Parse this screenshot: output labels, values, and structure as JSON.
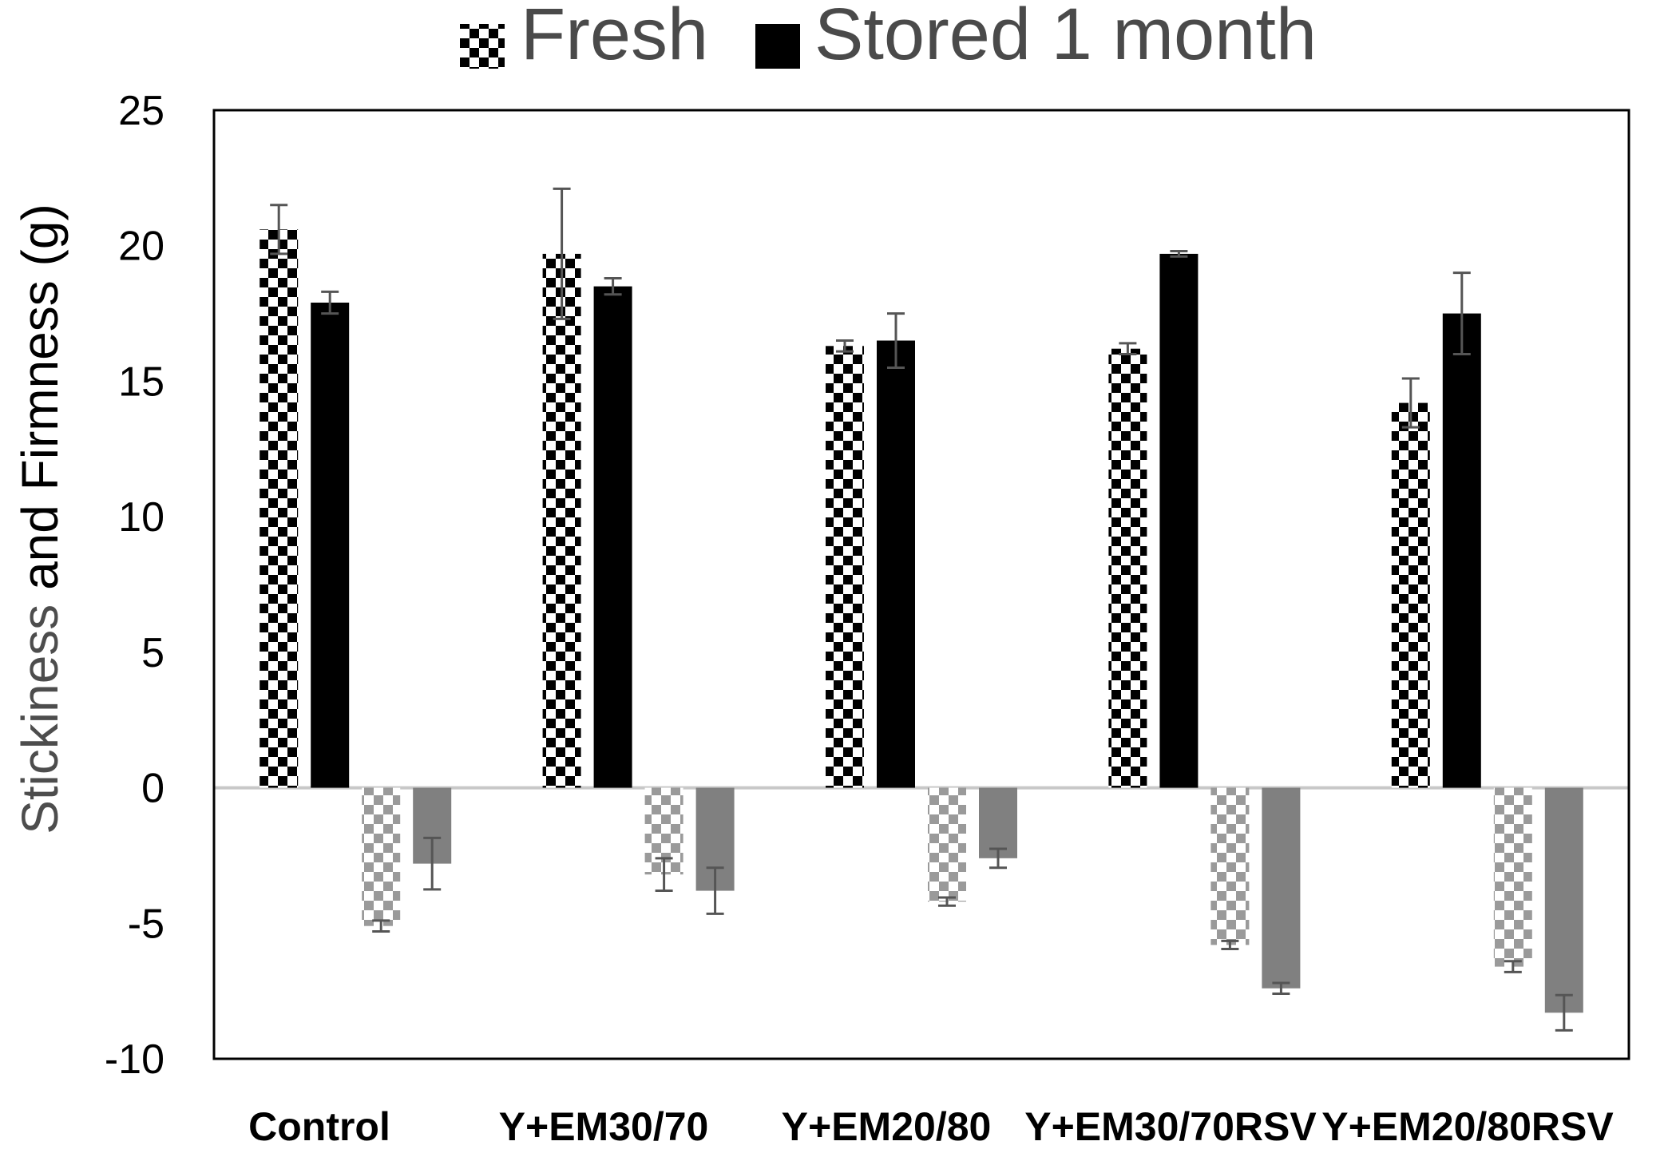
{
  "chart_data": {
    "type": "bar",
    "categories": [
      "Control",
      "Y+EM30/70",
      "Y+EM20/80",
      "Y+EM30/70RSV",
      "Y+EM20/80RSV"
    ],
    "ylabel_parts": [
      "Stickiness",
      " and Firmness (g)"
    ],
    "ylim": [
      -10,
      25
    ],
    "yticks": [
      25,
      20,
      15,
      10,
      5,
      0,
      -5,
      -10
    ],
    "grid": false,
    "legend_position": "top",
    "legend": [
      "Fresh",
      "Stored 1 month"
    ],
    "series": [
      {
        "name": "Fresh",
        "measure": "firmness",
        "pattern": "checker-dark",
        "values": [
          20.6,
          19.7,
          16.3,
          16.2,
          14.2
        ],
        "errors": [
          0.9,
          2.4,
          0.2,
          0.2,
          0.9
        ]
      },
      {
        "name": "Stored 1 month",
        "measure": "firmness",
        "color": "#000000",
        "values": [
          17.9,
          18.5,
          16.5,
          19.7,
          17.5
        ],
        "errors": [
          0.4,
          0.3,
          1.0,
          0.1,
          1.5
        ]
      },
      {
        "name": "Fresh",
        "measure": "stickiness",
        "pattern": "checker-light",
        "values": [
          -5.1,
          -3.2,
          -4.2,
          -5.8,
          -6.6
        ],
        "errors": [
          0.2,
          0.6,
          0.15,
          0.15,
          0.2
        ]
      },
      {
        "name": "Stored 1 month",
        "measure": "stickiness",
        "color": "#808080",
        "values": [
          -2.8,
          -3.8,
          -2.6,
          -7.4,
          -8.3
        ],
        "errors": [
          0.95,
          0.85,
          0.35,
          0.2,
          0.65
        ]
      }
    ],
    "colors": {
      "dark": "#000000",
      "light_pattern": "#9a9a9a",
      "gray_bar": "#808080",
      "error_bar": "#555555",
      "zero_line": "#c8c8c8"
    }
  }
}
